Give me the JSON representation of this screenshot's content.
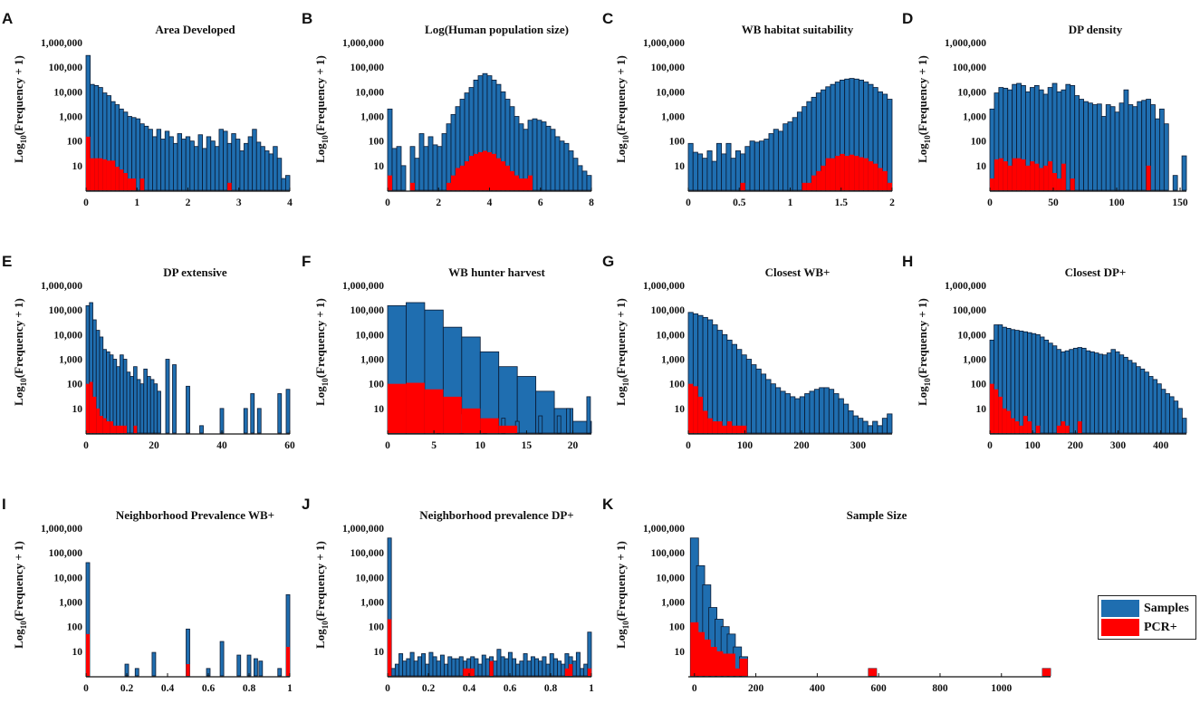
{
  "colors": {
    "samples": "#1f6eb0",
    "pcr": "#ff0000",
    "edge": "#0a1a33"
  },
  "y_axis": {
    "label_main": "Log",
    "label_sub": "10",
    "label_rest": "(Frequency + 1)",
    "ticks": [
      "1,000,000",
      "100,000",
      "10,000",
      "1,000",
      "100",
      "10"
    ],
    "tick_values": [
      1000000,
      100000,
      10000,
      1000,
      100,
      10
    ]
  },
  "legend": {
    "samples_label": "Samples",
    "pcr_label": "PCR+"
  },
  "chart_data": [
    {
      "letter": "A",
      "title": "Area Developed",
      "type": "bar",
      "xlim": [
        0,
        4
      ],
      "xticks": [
        0,
        1,
        2,
        3,
        4
      ],
      "xtick_labels": [
        "0",
        "1",
        "2",
        "3",
        "4"
      ],
      "ylim": [
        1,
        1000000
      ],
      "samples": [
        300000,
        20000,
        18000,
        15000,
        9000,
        7000,
        4000,
        3000,
        2000,
        1500,
        1000,
        900,
        800,
        500,
        400,
        300,
        150,
        300,
        120,
        250,
        150,
        80,
        200,
        120,
        150,
        100,
        60,
        180,
        50,
        150,
        100,
        60,
        300,
        250,
        80,
        200,
        120,
        40,
        80,
        150,
        300,
        90,
        60,
        40,
        30,
        60,
        20,
        3,
        4
      ],
      "pcr": [
        150,
        20,
        20,
        20,
        18,
        16,
        16,
        9,
        7,
        5,
        3,
        3,
        0,
        3,
        0,
        0,
        0,
        0,
        0,
        0,
        0,
        0,
        0,
        0,
        0,
        0,
        0,
        0,
        0,
        0,
        0,
        0,
        0,
        0,
        2,
        0,
        0,
        0,
        0,
        0,
        0,
        0,
        0,
        0,
        0,
        0,
        0,
        0,
        0
      ]
    },
    {
      "letter": "B",
      "title": "Log(Human population size)",
      "type": "bar",
      "xlim": [
        0,
        8
      ],
      "xticks": [
        0,
        2,
        4,
        6,
        8
      ],
      "xtick_labels": [
        "0",
        "2",
        "4",
        "6",
        "8"
      ],
      "ylim": [
        1,
        1000000
      ],
      "samples": [
        2000,
        50,
        60,
        10,
        0,
        60,
        20,
        200,
        60,
        150,
        70,
        60,
        200,
        500,
        1200,
        2500,
        5000,
        9000,
        15000,
        30000,
        45000,
        55000,
        45000,
        30000,
        20000,
        10000,
        5000,
        2500,
        1000,
        500,
        300,
        700,
        800,
        700,
        600,
        400,
        300,
        150,
        100,
        80,
        40,
        20,
        10,
        6,
        4
      ],
      "pcr": [
        4,
        0,
        0,
        0,
        0,
        2,
        0,
        0,
        0,
        0,
        0,
        0,
        0,
        2,
        4,
        8,
        10,
        15,
        25,
        30,
        35,
        40,
        35,
        30,
        20,
        15,
        10,
        6,
        4,
        3,
        3,
        4,
        0,
        0,
        0,
        0,
        0,
        0,
        0,
        0,
        0,
        0,
        0,
        0,
        0
      ]
    },
    {
      "letter": "C",
      "title": "WB habitat suitability",
      "type": "bar",
      "xlim": [
        0,
        2
      ],
      "xticks": [
        0,
        0.5,
        1,
        1.5,
        2
      ],
      "xtick_labels": [
        "0",
        "0.5",
        "1",
        "1.5",
        "2"
      ],
      "ylim": [
        1,
        1000000
      ],
      "samples": [
        80,
        35,
        30,
        20,
        40,
        15,
        80,
        30,
        80,
        20,
        40,
        30,
        60,
        100,
        90,
        100,
        120,
        200,
        300,
        250,
        500,
        600,
        900,
        1500,
        2500,
        4000,
        6000,
        9000,
        12000,
        16000,
        20000,
        25000,
        30000,
        33000,
        35000,
        33000,
        30000,
        25000,
        20000,
        15000,
        10000,
        8000,
        5000
      ],
      "pcr": [
        0,
        0,
        0,
        0,
        0,
        0,
        0,
        0,
        0,
        0,
        0,
        2,
        0,
        0,
        0,
        0,
        0,
        0,
        0,
        0,
        0,
        0,
        0,
        0,
        2,
        2,
        4,
        6,
        10,
        20,
        20,
        25,
        30,
        25,
        28,
        25,
        22,
        20,
        15,
        12,
        8,
        6,
        2
      ]
    },
    {
      "letter": "D",
      "title": "DP density",
      "type": "bar",
      "xlim": [
        0,
        155
      ],
      "xticks": [
        0,
        50,
        100,
        150
      ],
      "xtick_labels": [
        "0",
        "50",
        "100",
        "150"
      ],
      "ylim": [
        1,
        1000000
      ],
      "samples": [
        2000,
        9000,
        15000,
        14000,
        12000,
        20000,
        22000,
        18000,
        10000,
        15000,
        18000,
        12000,
        8000,
        15000,
        22000,
        10000,
        12000,
        20000,
        18000,
        7000,
        5000,
        4000,
        3500,
        3000,
        3200,
        1000,
        3000,
        2500,
        1500,
        3500,
        12000,
        3000,
        2500,
        4000,
        4500,
        5000,
        3000,
        800,
        2000,
        500,
        0,
        4,
        0,
        25
      ],
      "pcr": [
        3,
        18,
        20,
        15,
        10,
        20,
        20,
        18,
        10,
        15,
        12,
        8,
        10,
        15,
        5,
        3,
        12,
        0,
        3,
        0,
        0,
        0,
        0,
        0,
        0,
        0,
        0,
        0,
        0,
        0,
        0,
        0,
        0,
        0,
        0,
        10,
        0,
        0,
        0,
        0,
        0,
        0,
        0,
        0
      ]
    },
    {
      "letter": "E",
      "title": "DP extensive",
      "type": "bar",
      "xlim": [
        0,
        60
      ],
      "xticks": [
        0,
        20,
        40,
        60
      ],
      "xtick_labels": [
        "0",
        "20",
        "40",
        "60"
      ],
      "ylim": [
        1,
        1000000
      ],
      "samples": [
        150000,
        200000,
        40000,
        15000,
        8000,
        2500,
        2000,
        1500,
        1000,
        500,
        1500,
        1000,
        300,
        200,
        500,
        150,
        100,
        400,
        200,
        150,
        100,
        50,
        0,
        0,
        0,
        0,
        0,
        0,
        0,
        0,
        0,
        0,
        0,
        0,
        0,
        0,
        0,
        0,
        0,
        0,
        0,
        0,
        0,
        0,
        0,
        0,
        0,
        0,
        0,
        0,
        0,
        0,
        0,
        0,
        0,
        0,
        0,
        0,
        0,
        0
      ],
      "samples_sparse": [
        [
          24,
          1000
        ],
        [
          26,
          600
        ],
        [
          30,
          80
        ],
        [
          34,
          2
        ],
        [
          40,
          10
        ],
        [
          47,
          10
        ],
        [
          49,
          40
        ],
        [
          51,
          10
        ],
        [
          57,
          40
        ],
        [
          60,
          60
        ]
      ],
      "pcr": [
        100,
        120,
        30,
        10,
        5,
        4,
        3,
        3,
        2,
        2,
        2,
        2,
        0,
        0,
        2,
        0,
        0,
        0,
        0,
        0,
        0,
        0,
        0,
        0,
        0,
        0,
        0,
        0,
        0,
        0,
        0,
        0,
        0,
        0,
        0,
        0,
        0,
        0,
        0,
        0,
        0,
        0,
        0,
        0,
        0,
        0,
        0,
        0,
        0,
        0,
        0,
        0,
        0,
        0,
        0,
        0,
        0,
        0,
        0,
        0
      ]
    },
    {
      "letter": "F",
      "title": "WB hunter harvest",
      "type": "bar",
      "xlim": [
        0,
        22
      ],
      "xticks": [
        0,
        5,
        10,
        15,
        20
      ],
      "xtick_labels": [
        "0",
        "5",
        "10",
        "15",
        "20"
      ],
      "ylim": [
        1,
        1000000
      ],
      "samples": [
        150000,
        200000,
        100000,
        20000,
        8000,
        2000,
        500,
        200,
        50,
        10,
        3
      ],
      "samples_sparse": [
        [
          5.5,
          3
        ],
        [
          8,
          6
        ],
        [
          10.5,
          3
        ],
        [
          12.5,
          4
        ],
        [
          14,
          3
        ],
        [
          16.5,
          5
        ],
        [
          18.5,
          5
        ],
        [
          19.5,
          10
        ],
        [
          21.7,
          30
        ]
      ],
      "pcr": [
        100,
        110,
        60,
        30,
        10,
        4,
        2,
        0,
        0,
        0,
        0
      ]
    },
    {
      "letter": "G",
      "title": "Closest WB+",
      "type": "bar",
      "xlim": [
        0,
        360
      ],
      "xticks": [
        0,
        100,
        200,
        300
      ],
      "xtick_labels": [
        "0",
        "100",
        "200",
        "300"
      ],
      "ylim": [
        1,
        1000000
      ],
      "samples": [
        80000,
        70000,
        60000,
        50000,
        40000,
        25000,
        15000,
        10000,
        6000,
        4000,
        2500,
        1500,
        1000,
        600,
        400,
        250,
        150,
        100,
        70,
        50,
        40,
        30,
        25,
        30,
        40,
        50,
        60,
        70,
        70,
        60,
        40,
        25,
        15,
        8,
        5,
        4,
        3,
        2,
        3,
        2,
        4,
        6
      ],
      "pcr": [
        100,
        80,
        30,
        8,
        4,
        3,
        3,
        2,
        3,
        2,
        2,
        2,
        0,
        0,
        0,
        0,
        0,
        0,
        0,
        0,
        0,
        0,
        0,
        0,
        0,
        0,
        0,
        0,
        0,
        0,
        0,
        0,
        0,
        0,
        0,
        0,
        0,
        0,
        0,
        0,
        0,
        0
      ]
    },
    {
      "letter": "H",
      "title": "Closest DP+",
      "type": "bar",
      "xlim": [
        0,
        460
      ],
      "xticks": [
        0,
        100,
        200,
        300,
        400
      ],
      "xtick_labels": [
        "0",
        "100",
        "200",
        "300",
        "400"
      ],
      "ylim": [
        1,
        1000000
      ],
      "samples": [
        6000,
        25000,
        25000,
        20000,
        18000,
        16000,
        15000,
        14000,
        13000,
        12000,
        11000,
        10000,
        8000,
        6000,
        4500,
        3500,
        2500,
        2000,
        2200,
        2500,
        2800,
        3000,
        2800,
        2200,
        2000,
        1800,
        1600,
        1500,
        1800,
        2500,
        2000,
        1500,
        1200,
        900,
        700,
        500,
        400,
        300,
        200,
        150,
        100,
        60,
        40,
        30,
        20,
        10,
        4
      ],
      "pcr": [
        100,
        60,
        30,
        10,
        8,
        4,
        3,
        2,
        5,
        3,
        0,
        2,
        0,
        0,
        0,
        0,
        2,
        3,
        2,
        0,
        0,
        3,
        0,
        0,
        0,
        0,
        0,
        0,
        0,
        0,
        0,
        0,
        0,
        0,
        0,
        0,
        0,
        0,
        0,
        0,
        0,
        0,
        0,
        0,
        0,
        0,
        0
      ]
    },
    {
      "letter": "I",
      "title": "Neighborhood Prevalence WB+",
      "type": "bar",
      "xlim": [
        0,
        1
      ],
      "xticks": [
        0,
        0.2,
        0.4,
        0.6,
        0.8,
        1
      ],
      "xtick_labels": [
        "0",
        "0.2",
        "0.4",
        "0.6",
        "0.8",
        "1"
      ],
      "ylim": [
        1,
        1000000
      ],
      "samples_sparse": [
        [
          0,
          40000
        ],
        [
          0.2,
          3
        ],
        [
          0.25,
          2
        ],
        [
          0.333,
          9
        ],
        [
          0.5,
          80
        ],
        [
          0.6,
          2
        ],
        [
          0.667,
          25
        ],
        [
          0.75,
          7
        ],
        [
          0.8,
          7
        ],
        [
          0.833,
          5
        ],
        [
          0.857,
          4
        ],
        [
          0.95,
          2
        ],
        [
          1,
          2000
        ]
      ],
      "pcr_sparse": [
        [
          0,
          50
        ],
        [
          0.5,
          3
        ],
        [
          1,
          15
        ]
      ]
    },
    {
      "letter": "J",
      "title": "Neighborhood prevalence DP+",
      "type": "bar",
      "xlim": [
        0,
        1
      ],
      "xticks": [
        0,
        0.2,
        0.4,
        0.6,
        0.8,
        1
      ],
      "xtick_labels": [
        "0",
        "0.2",
        "0.4",
        "0.6",
        "0.8",
        "1"
      ],
      "ylim": [
        1,
        1000000
      ],
      "samples": [
        400000,
        2,
        3,
        8,
        4,
        5,
        9,
        4,
        6,
        8,
        3,
        9,
        6,
        4,
        7,
        3,
        6,
        5,
        5,
        6,
        4,
        5,
        6,
        5,
        3,
        7,
        5,
        6,
        4,
        12,
        6,
        5,
        9,
        5,
        3,
        4,
        8,
        4,
        6,
        5,
        4,
        6,
        3,
        8,
        5,
        4,
        3,
        8,
        6,
        4,
        9,
        2,
        3,
        60
      ],
      "pcr": [
        200,
        0,
        0,
        0,
        0,
        0,
        0,
        0,
        0,
        0,
        0,
        0,
        0,
        0,
        0,
        0,
        0,
        0,
        0,
        0,
        2,
        2,
        2,
        0,
        0,
        0,
        0,
        4,
        0,
        0,
        0,
        0,
        0,
        0,
        0,
        0,
        0,
        0,
        0,
        0,
        0,
        0,
        0,
        0,
        0,
        0,
        0,
        2,
        3,
        0,
        0,
        0,
        0,
        2
      ]
    },
    {
      "letter": "K",
      "title": "Sample Size",
      "type": "bar",
      "xlim": [
        -20,
        1160
      ],
      "xticks": [
        0,
        200,
        400,
        600,
        800,
        1000
      ],
      "xtick_labels": [
        "0",
        "200",
        "400",
        "600",
        "800",
        "1000"
      ],
      "ylim": [
        1,
        1000000
      ],
      "samples_sparse": [
        [
          0,
          400000
        ],
        [
          20,
          30000
        ],
        [
          40,
          5000
        ],
        [
          60,
          600
        ],
        [
          80,
          200
        ],
        [
          100,
          100
        ],
        [
          120,
          50
        ],
        [
          140,
          15
        ],
        [
          160,
          6
        ],
        [
          580,
          2
        ],
        [
          1150,
          2
        ]
      ],
      "pcr_sparse": [
        [
          0,
          150
        ],
        [
          20,
          60
        ],
        [
          40,
          30
        ],
        [
          60,
          15
        ],
        [
          80,
          10
        ],
        [
          100,
          8
        ],
        [
          120,
          8
        ],
        [
          140,
          2
        ],
        [
          160,
          5
        ],
        [
          580,
          2
        ],
        [
          1150,
          2
        ]
      ]
    }
  ]
}
